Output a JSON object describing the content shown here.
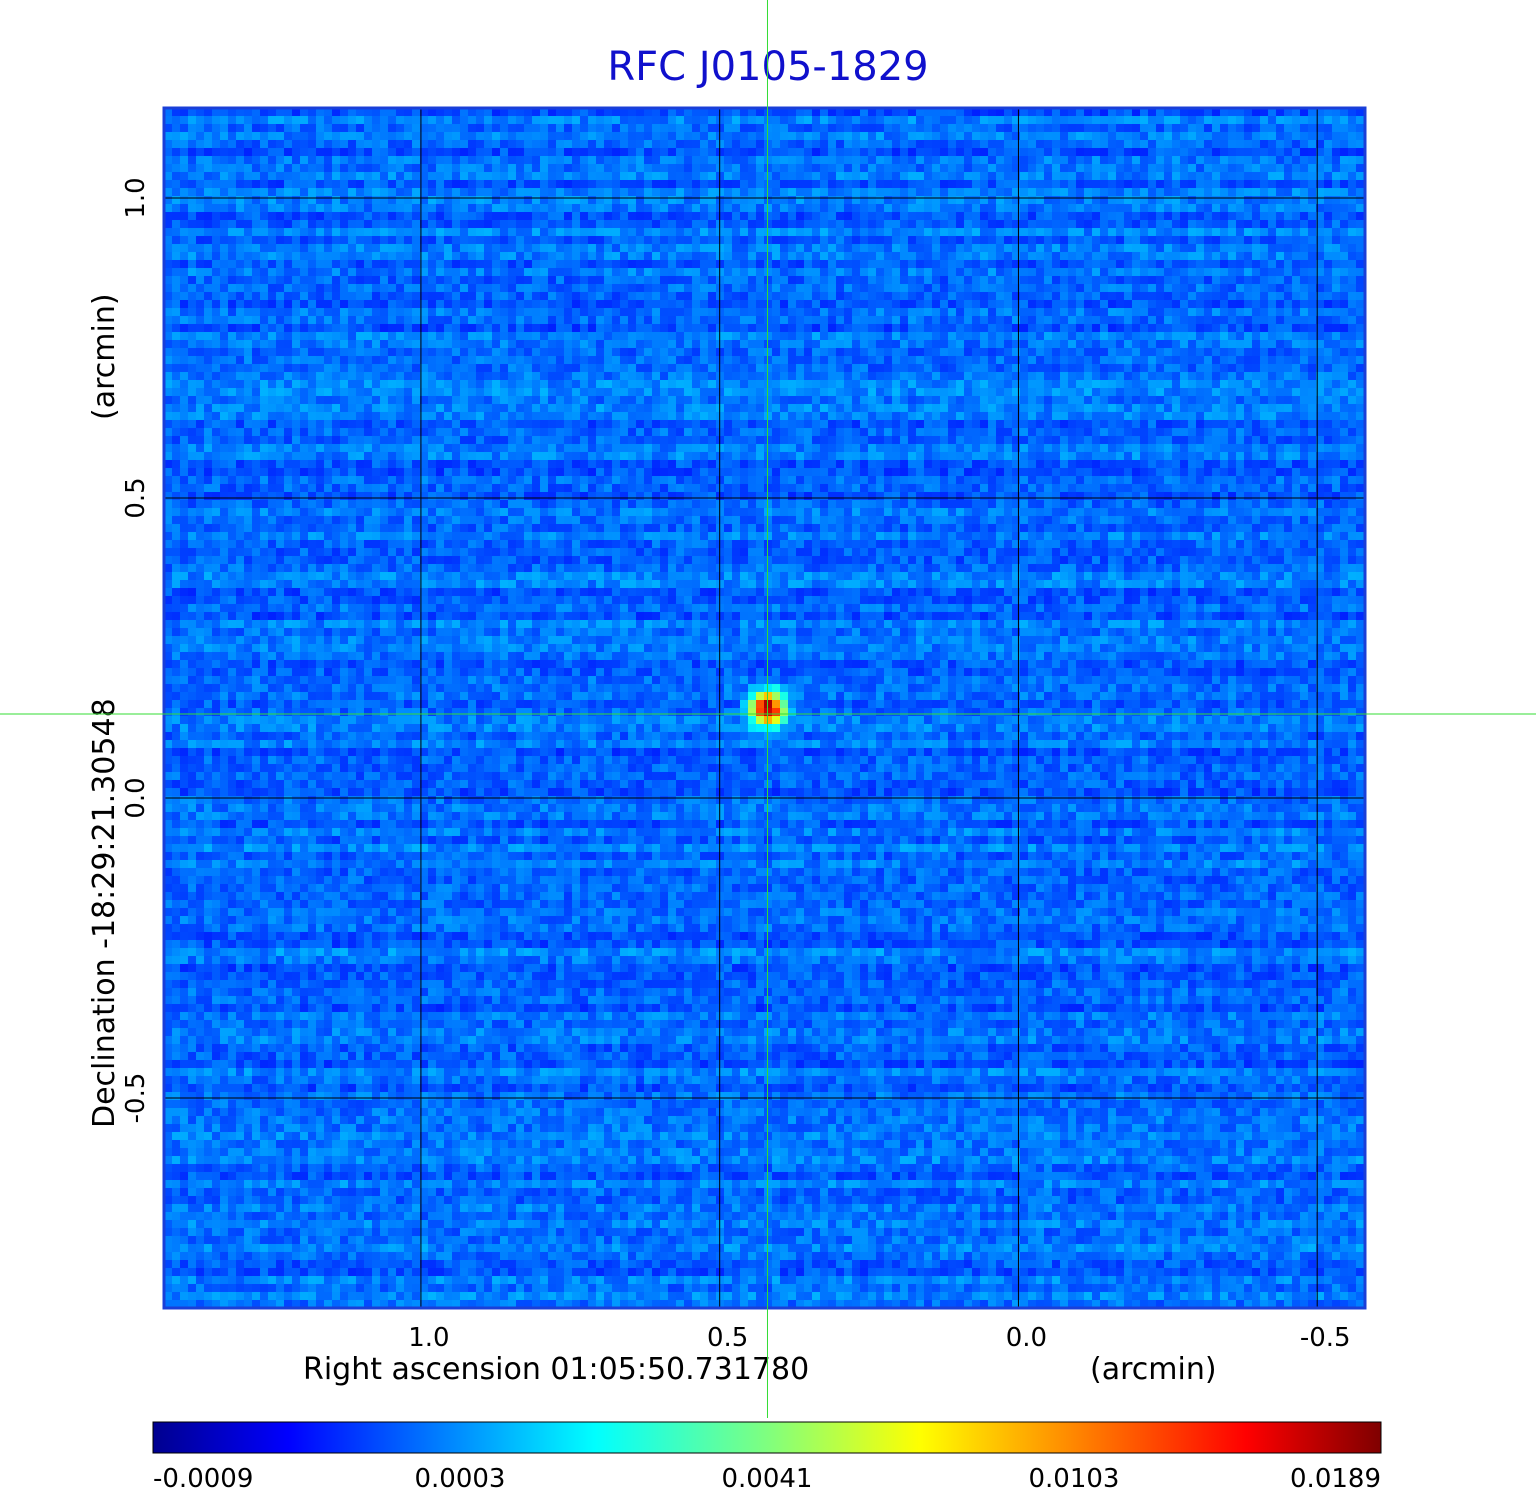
{
  "chart_data": {
    "type": "heatmap",
    "title": "RFC J0105-1829",
    "xlabel": "Right ascension  01:05:50.731780",
    "xunit": "(arcmin)",
    "ylabel": "Declination  -18:29:21.30548",
    "yunit": "(arcmin)",
    "xlim": [
      1.43,
      -0.58
    ],
    "ylim": [
      -0.85,
      1.15
    ],
    "x_ticks": [
      1.0,
      0.5,
      0.0,
      -0.5
    ],
    "x_tick_labels": [
      "1.0",
      "0.5",
      "0.0",
      "-0.5"
    ],
    "y_ticks": [
      1.0,
      0.5,
      0.0,
      -0.5
    ],
    "y_tick_labels": [
      "1.0",
      "0.5",
      "0.0",
      "-0.5"
    ],
    "grid": true,
    "crosshair": {
      "x": 0.42,
      "y": 0.14
    },
    "source_peak": {
      "x": 0.42,
      "y": 0.15,
      "value": 0.0189
    },
    "colormap": "jet",
    "colorbar": {
      "range": [
        -0.0009,
        0.0189
      ],
      "tick_labels": [
        "-0.0009",
        "0.0003",
        "0.0041",
        "0.0103",
        "0.0189"
      ]
    },
    "colors": {
      "title": "#1010cc",
      "frame": "#1a3fd8",
      "grid": "#000000",
      "crosshair": "#33dd33",
      "background_noise": "#2a78ea"
    }
  }
}
